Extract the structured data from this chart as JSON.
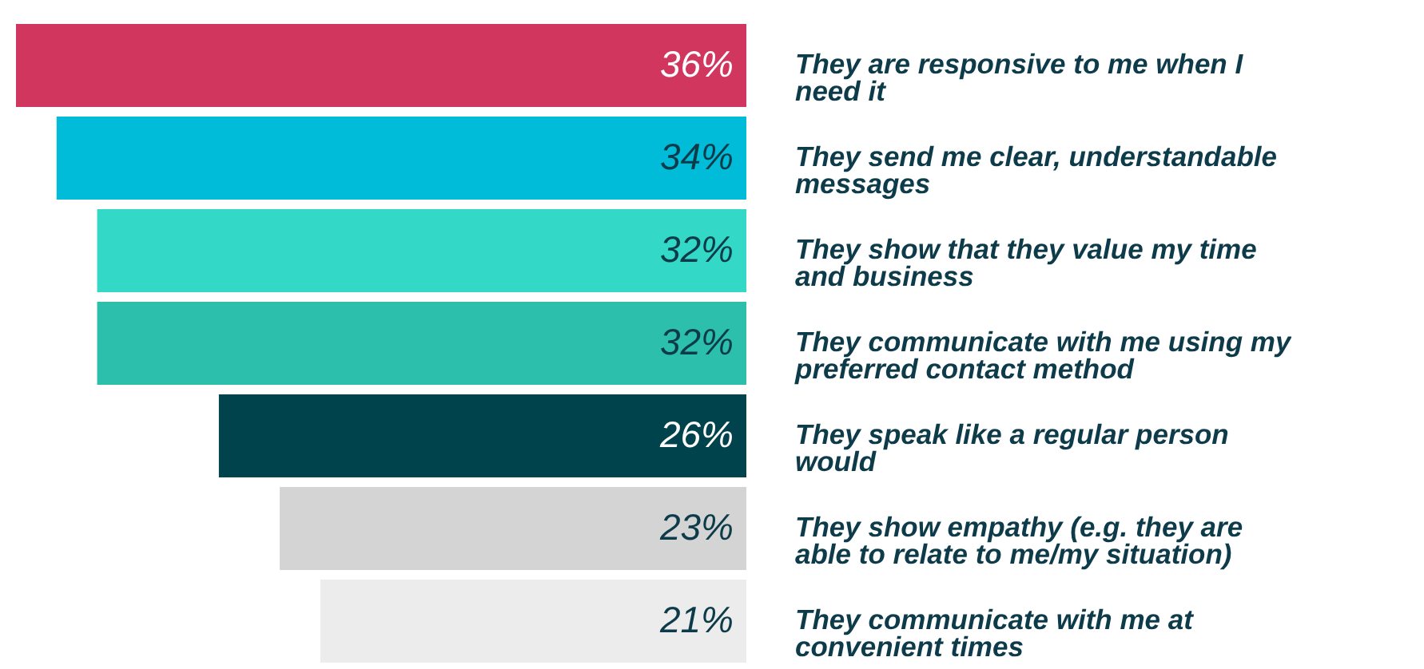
{
  "chart_data": {
    "type": "bar",
    "orientation": "horizontal",
    "categories": [
      "They are responsive to me when I need it",
      "They send me clear, understandable messages",
      "They show that they value my time and business",
      "They communicate with me using my preferred contact method",
      "They speak like a regular person would",
      "They show empathy (e.g. they are able to relate to me/my situation)",
      "They communicate with me at convenient times"
    ],
    "values": [
      36,
      34,
      32,
      32,
      26,
      23,
      21
    ],
    "value_labels": [
      "36%",
      "34%",
      "32%",
      "32%",
      "26%",
      "23%",
      "21%"
    ],
    "colors": [
      "#d0365e",
      "#00bcd8",
      "#33d9c6",
      "#2cbfac",
      "#00434c",
      "#d4d4d4",
      "#ececec"
    ]
  }
}
